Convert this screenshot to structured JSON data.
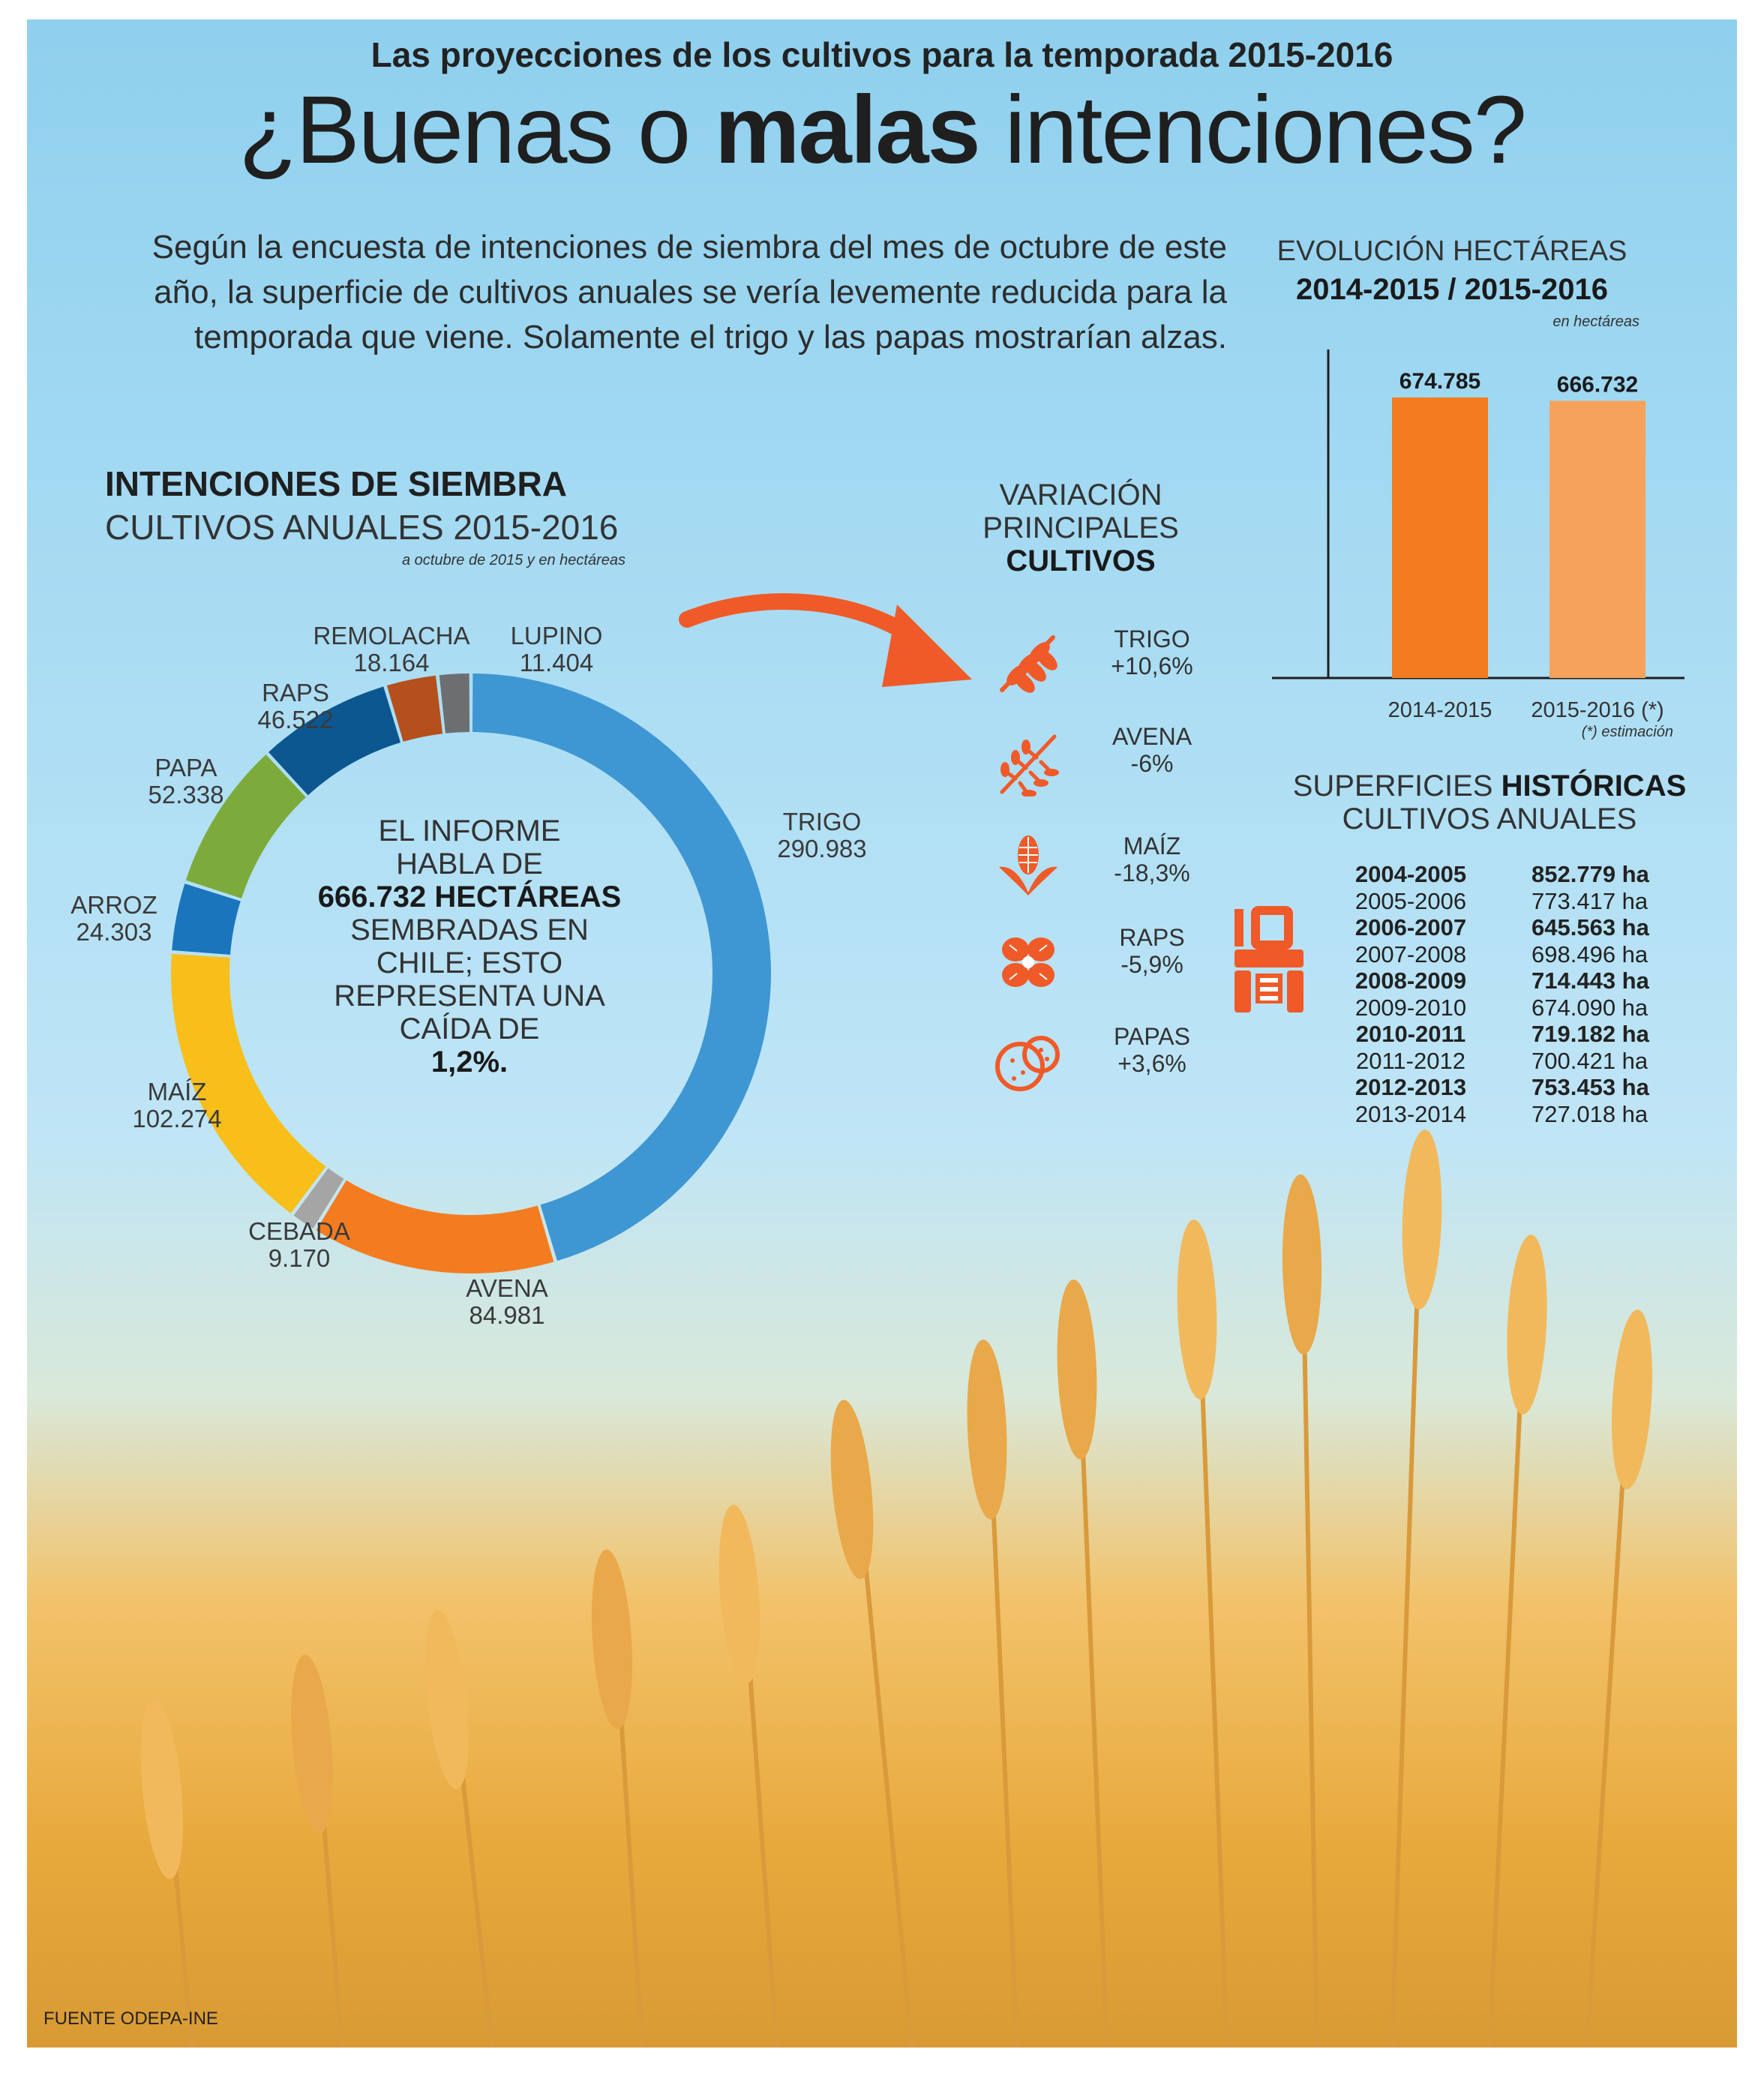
{
  "header": {
    "kicker": "Las proyecciones de los cultivos para la temporada 2015-2016",
    "headline_pre": "¿Buenas o ",
    "headline_bold": "malas",
    "headline_post": " intenciones?",
    "intro": "Según la encuesta de intenciones de siembra del mes de octubre de este año, la superficie de cultivos anuales se vería levemente reducida para la temporada que viene. Solamente el trigo y las papas mostrarían alzas."
  },
  "donut": {
    "title": "INTENCIONES DE SIEMBRA",
    "subtitle": "CULTIVOS ANUALES 2015-2016",
    "note": "a octubre de 2015 y en hectáreas",
    "center": {
      "line1": "EL INFORME",
      "line2": "HABLA DE",
      "highlight": "666.732 HECTÁREAS",
      "line3": "SEMBRADAS EN",
      "line4": "CHILE; ESTO",
      "line5": "REPRESENTA UNA",
      "line6": "CAÍDA DE",
      "percent": "1,2%."
    }
  },
  "chart_data": [
    {
      "type": "pie",
      "title": "INTENCIONES DE SIEMBRA",
      "subtitle": "CULTIVOS ANUALES 2015-2016",
      "note": "a octubre de 2015 y en hectáreas",
      "categories": [
        "TRIGO",
        "AVENA",
        "CEBADA",
        "MAÍZ",
        "ARROZ",
        "PAPA",
        "RAPS",
        "REMOLACHA",
        "LUPINO"
      ],
      "labels": [
        "290.983",
        "84.981",
        "9.170",
        "102.274",
        "24.303",
        "52.338",
        "46.522",
        "18.164",
        "11.404"
      ],
      "values": [
        290983,
        84981,
        9170,
        102274,
        24303,
        52338,
        46522,
        18164,
        11404
      ],
      "colors": [
        "#3e97d2",
        "#f47c20",
        "#a5a5a5",
        "#f8bf1b",
        "#1b75bc",
        "#7cab3c",
        "#0d5790",
        "#b5501d",
        "#6d6e70"
      ]
    },
    {
      "type": "bar",
      "title": "EVOLUCIÓN HECTÁREAS",
      "subtitle": "2014-2015 / 2015-2016",
      "units_note": "en hectáreas",
      "categories": [
        "2014-2015",
        "2015-2016 (*)"
      ],
      "labels": [
        "674.785",
        "666.732"
      ],
      "values": [
        674785,
        666732
      ],
      "colors": [
        "#f47c20",
        "#f7a25c"
      ],
      "footnote": "(*) estimación"
    },
    {
      "type": "table",
      "title_pre": "SUPERFICIES ",
      "title_bold": "HISTÓRICAS",
      "title_line2": "CULTIVOS ANUALES",
      "rows": [
        {
          "season": "2004-2005",
          "value": "852.779 ha",
          "bold": true
        },
        {
          "season": "2005-2006",
          "value": "773.417 ha",
          "bold": false
        },
        {
          "season": "2006-2007",
          "value": "645.563 ha",
          "bold": true
        },
        {
          "season": "2007-2008",
          "value": "698.496 ha",
          "bold": false
        },
        {
          "season": "2008-2009",
          "value": "714.443 ha",
          "bold": true
        },
        {
          "season": "2009-2010",
          "value": "674.090 ha",
          "bold": false
        },
        {
          "season": "2010-2011",
          "value": "719.182 ha",
          "bold": true
        },
        {
          "season": "2011-2012",
          "value": "700.421 ha",
          "bold": false
        },
        {
          "season": "2012-2013",
          "value": "753.453 ha",
          "bold": true
        },
        {
          "season": "2013-2014",
          "value": "727.018 ha",
          "bold": false
        }
      ]
    }
  ],
  "variation": {
    "title_l1": "VARIACIÓN",
    "title_l2": "PRINCIPALES",
    "title_l3": "CULTIVOS",
    "items": [
      {
        "name": "TRIGO",
        "change": "+10,6%",
        "icon": "wheat-icon"
      },
      {
        "name": "AVENA",
        "change": "-6%",
        "icon": "oat-icon"
      },
      {
        "name": "MAÍZ",
        "change": "-18,3%",
        "icon": "corn-icon"
      },
      {
        "name": "RAPS",
        "change": "-5,9%",
        "icon": "rapeseed-icon"
      },
      {
        "name": "PAPAS",
        "change": "+3,6%",
        "icon": "potato-icon"
      }
    ]
  },
  "colors": {
    "accent": "#f05a28",
    "orange": "#f47c20",
    "light_orange": "#f7a25c"
  },
  "source": "FUENTE ODEPA-INE"
}
